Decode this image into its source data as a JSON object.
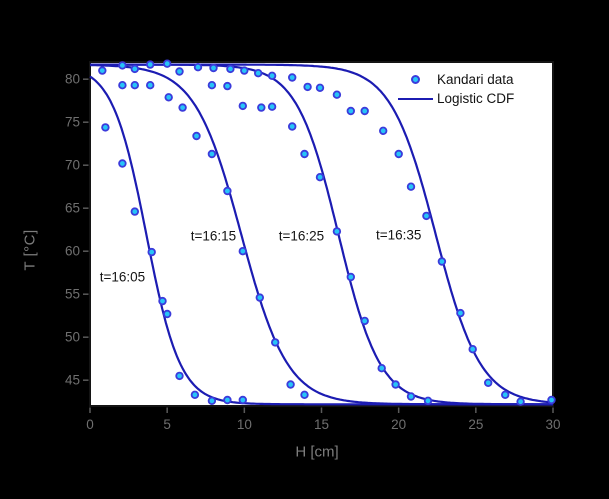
{
  "chart_data": {
    "type": "scatter",
    "title": "",
    "xlabel": "H [cm]",
    "ylabel": "T [°C]",
    "xlim": [
      0,
      30
    ],
    "ylim": [
      42,
      82
    ],
    "x_ticks": [
      0,
      5,
      10,
      15,
      20,
      25,
      30
    ],
    "y_ticks": [
      45,
      50,
      55,
      60,
      65,
      70,
      75,
      80
    ],
    "grid": false,
    "legend": {
      "position": "top-right",
      "items": [
        {
          "label": "Kandari data",
          "type": "marker"
        },
        {
          "label": "Logistic CDF",
          "type": "line"
        }
      ]
    },
    "t_max": 81.7,
    "t_min": 42.2,
    "series": [
      {
        "label": "t=16:05",
        "midpoint": 3.65,
        "scale": 1.1
      },
      {
        "label": "t=16:15",
        "midpoint": 9.8,
        "scale": 1.5
      },
      {
        "label": "t=16:25",
        "midpoint": 16.1,
        "scale": 1.35
      },
      {
        "label": "t=16:35",
        "midpoint": 22.4,
        "scale": 1.45
      }
    ],
    "annotations": [
      {
        "label": "t=16:05",
        "h": 2.1,
        "t": 57.0
      },
      {
        "label": "t=16:15",
        "h": 8.0,
        "t": 61.8
      },
      {
        "label": "t=16:25",
        "h": 13.7,
        "t": 61.8
      },
      {
        "label": "t=16:35",
        "h": 20.0,
        "t": 61.9
      }
    ],
    "points": [
      [
        0.8,
        81.0
      ],
      [
        2.1,
        81.6
      ],
      [
        2.9,
        81.2
      ],
      [
        3.9,
        81.7
      ],
      [
        5.0,
        81.8
      ],
      [
        5.8,
        80.9
      ],
      [
        7.0,
        81.4
      ],
      [
        8.0,
        81.3
      ],
      [
        9.1,
        81.2
      ],
      [
        10.0,
        81.0
      ],
      [
        10.9,
        80.7
      ],
      [
        11.8,
        80.4
      ],
      [
        13.1,
        80.2
      ],
      [
        2.1,
        79.3
      ],
      [
        2.9,
        79.3
      ],
      [
        3.9,
        79.3
      ],
      [
        7.9,
        79.3
      ],
      [
        8.9,
        79.2
      ],
      [
        14.1,
        79.1
      ],
      [
        14.9,
        79.0
      ],
      [
        5.1,
        77.9
      ],
      [
        6.0,
        76.7
      ],
      [
        9.9,
        76.9
      ],
      [
        11.1,
        76.7
      ],
      [
        11.8,
        76.8
      ],
      [
        1.0,
        74.4
      ],
      [
        2.1,
        70.2
      ],
      [
        2.9,
        64.6
      ],
      [
        4.0,
        59.9
      ],
      [
        4.7,
        54.2
      ],
      [
        5.0,
        52.7
      ],
      [
        5.8,
        45.5
      ],
      [
        6.8,
        43.3
      ],
      [
        7.9,
        42.6
      ],
      [
        8.9,
        42.7
      ],
      [
        9.9,
        42.7
      ],
      [
        6.9,
        73.4
      ],
      [
        7.9,
        71.3
      ],
      [
        8.9,
        67.0
      ],
      [
        9.9,
        60.0
      ],
      [
        11.0,
        54.6
      ],
      [
        12.0,
        49.4
      ],
      [
        13.0,
        44.5
      ],
      [
        13.9,
        43.3
      ],
      [
        13.1,
        74.5
      ],
      [
        13.9,
        71.3
      ],
      [
        14.9,
        68.6
      ],
      [
        16.0,
        62.3
      ],
      [
        16.9,
        57.0
      ],
      [
        17.8,
        51.9
      ],
      [
        18.9,
        46.4
      ],
      [
        19.8,
        44.5
      ],
      [
        20.8,
        43.1
      ],
      [
        21.9,
        42.6
      ],
      [
        16.0,
        78.2
      ],
      [
        16.9,
        76.3
      ],
      [
        17.8,
        76.3
      ],
      [
        19.0,
        74.0
      ],
      [
        20.0,
        71.3
      ],
      [
        20.8,
        67.5
      ],
      [
        21.8,
        64.1
      ],
      [
        22.8,
        58.8
      ],
      [
        24.0,
        52.8
      ],
      [
        24.8,
        48.6
      ],
      [
        25.8,
        44.7
      ],
      [
        26.9,
        43.3
      ],
      [
        27.9,
        42.5
      ],
      [
        29.9,
        42.7
      ]
    ],
    "colors": {
      "background": "#000000",
      "plot_bg": "#ffffff",
      "frame": "#141414",
      "curve": "#1c1cb2",
      "marker_fill": "#27c4f7",
      "marker_edge": "#3b3bdb",
      "tick": "#5a5a5a",
      "tick_text": "#6f6f6f",
      "axis_label_text": "#7d7d7d",
      "annotation_text": "#141414",
      "legend_text": "#121212"
    }
  }
}
